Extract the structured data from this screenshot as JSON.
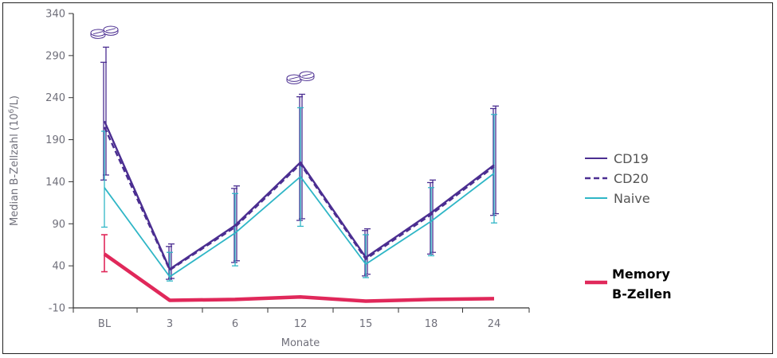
{
  "chart_data": {
    "type": "line",
    "title": "",
    "xlabel": "Monate",
    "ylabel_main": "Median B-Zellzahl (10",
    "ylabel_sup": "6",
    "ylabel_end": "/L)",
    "categories": [
      "BL",
      "3",
      "6",
      "12",
      "15",
      "18",
      "24"
    ],
    "yticks": [
      "340",
      "290",
      "240",
      "190",
      "140",
      "90",
      "40",
      "-10"
    ],
    "ylim": [
      -10,
      340
    ],
    "grid": false,
    "legend_position": "right",
    "series": [
      {
        "name": "CD19",
        "color": "#4b2e91",
        "style": "solid",
        "values": [
          212,
          36,
          88,
          163,
          50,
          103,
          160
        ],
        "error_high": [
          300,
          66,
          135,
          244,
          84,
          142,
          230
        ],
        "error_low": [
          148,
          25,
          46,
          96,
          30,
          56,
          102
        ]
      },
      {
        "name": "CD20",
        "color": "#4b2e91",
        "style": "dashed",
        "values": [
          205,
          35,
          86,
          161,
          48,
          101,
          158
        ],
        "error_high": [
          282,
          63,
          132,
          241,
          82,
          139,
          227
        ],
        "error_low": [
          142,
          24,
          44,
          94,
          28,
          54,
          100
        ]
      },
      {
        "name": "Naive",
        "color": "#2fb6c6",
        "style": "solid",
        "values": [
          133,
          27,
          79,
          146,
          42,
          93,
          150
        ],
        "error_high": [
          200,
          56,
          126,
          228,
          77,
          133,
          220
        ],
        "error_low": [
          86,
          22,
          40,
          87,
          26,
          52,
          91
        ]
      },
      {
        "name_line1": "Memory",
        "name_line2": "B-Zellen",
        "color": "#e0285a",
        "style": "bold",
        "values": [
          54,
          -1,
          0,
          3,
          -2,
          0,
          1
        ],
        "error_high": [
          77,
          null,
          null,
          null,
          null,
          null,
          null
        ],
        "error_low": [
          33,
          null,
          null,
          null,
          null,
          null,
          null
        ]
      }
    ],
    "annotations": [
      {
        "type": "pill-icon",
        "at_category": "BL",
        "value": 320
      },
      {
        "type": "pill-icon",
        "at_category": "12",
        "value": 266
      }
    ]
  }
}
